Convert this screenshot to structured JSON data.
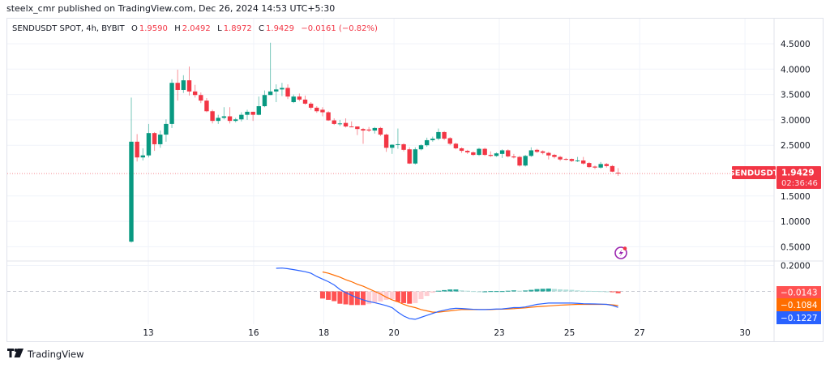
{
  "header": {
    "published": "steelx_cmr published on TradingView.com, Dec 26, 2024 14:53 UTC+5:30"
  },
  "legend": {
    "symbol": "SENDUSDT SPOT, 4h, BYBIT",
    "o_label": "O",
    "o": "1.9590",
    "h_label": "H",
    "h": "2.0492",
    "l_label": "L",
    "l": "1.8972",
    "c_label": "C",
    "c": "1.9429",
    "change": "−0.0161 (−0.82%)"
  },
  "price_label": {
    "symbol": "SENDUSDT",
    "price": "1.9429",
    "countdown": "02:36:46"
  },
  "macd_labels": {
    "histogram": "−0.0143",
    "signal": "−0.1084",
    "macd": "−0.1227"
  },
  "footer": {
    "brand": "TradingView"
  },
  "colors": {
    "up": "#089981",
    "down": "#f23645",
    "macd": "#2962ff",
    "signal": "#ff6d00",
    "hist_up": "#26a69a",
    "hist_up_light": "#b2dfdb",
    "hist_down": "#ff5252",
    "hist_down_light": "#ffcdd2",
    "alert_icon": "#9c27b0"
  },
  "icons": {
    "alert": "lightning-alert-icon",
    "logo": "tradingview-logo-icon"
  },
  "chart_data": [
    {
      "type": "candlestick",
      "interval": "4h",
      "y_ticks": [
        "4.5000",
        "4.0000",
        "3.5000",
        "3.0000",
        "2.5000",
        "1.5000",
        "1.0000",
        "0.5000"
      ],
      "x_ticks": [
        "13",
        "16",
        "18",
        "20",
        "23",
        "25",
        "27",
        "30"
      ],
      "grid": true,
      "ohlc": [
        [
          0.6,
          3.44,
          0.58,
          2.57
        ],
        [
          2.57,
          2.72,
          2.18,
          2.26
        ],
        [
          2.26,
          2.44,
          2.2,
          2.3
        ],
        [
          2.3,
          2.92,
          2.26,
          2.74
        ],
        [
          2.74,
          2.76,
          2.39,
          2.52
        ],
        [
          2.52,
          2.79,
          2.45,
          2.71
        ],
        [
          2.71,
          3.01,
          2.57,
          2.92
        ],
        [
          2.92,
          3.8,
          2.84,
          3.73
        ],
        [
          3.73,
          3.99,
          3.38,
          3.59
        ],
        [
          3.59,
          3.88,
          3.53,
          3.78
        ],
        [
          3.78,
          4.05,
          3.48,
          3.56
        ],
        [
          3.56,
          3.69,
          3.44,
          3.49
        ],
        [
          3.49,
          3.54,
          3.33,
          3.38
        ],
        [
          3.38,
          3.43,
          3.15,
          3.17
        ],
        [
          3.17,
          3.2,
          2.93,
          2.98
        ],
        [
          2.98,
          3.1,
          2.92,
          3.04
        ],
        [
          3.04,
          3.25,
          3.01,
          3.07
        ],
        [
          3.07,
          3.25,
          2.93,
          2.98
        ],
        [
          2.98,
          3.04,
          2.95,
          3.01
        ],
        [
          3.01,
          3.15,
          2.97,
          3.1
        ],
        [
          3.1,
          3.2,
          3.0,
          3.16
        ],
        [
          3.16,
          3.16,
          2.98,
          3.1
        ],
        [
          3.1,
          3.46,
          3.09,
          3.27
        ],
        [
          3.27,
          3.58,
          3.25,
          3.49
        ],
        [
          3.49,
          4.52,
          3.49,
          3.56
        ],
        [
          3.56,
          3.7,
          3.35,
          3.6
        ],
        [
          3.6,
          3.73,
          3.47,
          3.63
        ],
        [
          3.63,
          3.7,
          3.41,
          3.46
        ],
        [
          3.35,
          3.5,
          3.33,
          3.46
        ],
        [
          3.46,
          3.52,
          3.37,
          3.4
        ],
        [
          3.4,
          3.48,
          3.3,
          3.32
        ],
        [
          3.32,
          3.35,
          3.2,
          3.24
        ],
        [
          3.24,
          3.27,
          3.14,
          3.17
        ],
        [
          3.2,
          3.25,
          3.07,
          3.15
        ],
        [
          3.15,
          3.17,
          2.98,
          2.99
        ],
        [
          2.99,
          3.03,
          2.9,
          2.92
        ],
        [
          2.92,
          3.0,
          2.88,
          2.93
        ],
        [
          2.94,
          3.03,
          2.85,
          2.87
        ],
        [
          2.87,
          2.97,
          2.86,
          2.86
        ],
        [
          2.87,
          2.87,
          2.7,
          2.82
        ],
        [
          2.82,
          2.84,
          2.53,
          2.79
        ],
        [
          2.81,
          2.86,
          2.76,
          2.79
        ],
        [
          2.79,
          2.86,
          2.73,
          2.84
        ],
        [
          2.84,
          2.86,
          2.68,
          2.71
        ],
        [
          2.71,
          2.73,
          2.37,
          2.45
        ],
        [
          2.45,
          2.52,
          2.33,
          2.51
        ],
        [
          2.51,
          2.83,
          2.43,
          2.52
        ],
        [
          2.52,
          2.54,
          2.38,
          2.41
        ],
        [
          2.42,
          2.46,
          2.13,
          2.14
        ],
        [
          2.14,
          2.46,
          2.12,
          2.42
        ],
        [
          2.42,
          2.52,
          2.4,
          2.5
        ],
        [
          2.5,
          2.65,
          2.47,
          2.6
        ],
        [
          2.6,
          2.67,
          2.57,
          2.63
        ],
        [
          2.63,
          2.83,
          2.6,
          2.76
        ],
        [
          2.76,
          2.78,
          2.6,
          2.63
        ],
        [
          2.64,
          2.66,
          2.5,
          2.53
        ],
        [
          2.53,
          2.55,
          2.42,
          2.44
        ],
        [
          2.44,
          2.46,
          2.35,
          2.39
        ],
        [
          2.39,
          2.41,
          2.33,
          2.36
        ],
        [
          2.36,
          2.38,
          2.29,
          2.31
        ],
        [
          2.31,
          2.45,
          2.29,
          2.43
        ],
        [
          2.43,
          2.45,
          2.29,
          2.31
        ],
        [
          2.31,
          2.38,
          2.27,
          2.29
        ],
        [
          2.29,
          2.36,
          2.27,
          2.34
        ],
        [
          2.33,
          2.42,
          2.25,
          2.4
        ],
        [
          2.4,
          2.42,
          2.26,
          2.28
        ],
        [
          2.28,
          2.33,
          2.24,
          2.26
        ],
        [
          2.27,
          2.29,
          2.08,
          2.1
        ],
        [
          2.1,
          2.31,
          2.08,
          2.29
        ],
        [
          2.29,
          2.46,
          2.27,
          2.4
        ],
        [
          2.41,
          2.43,
          2.35,
          2.37
        ],
        [
          2.38,
          2.4,
          2.32,
          2.35
        ],
        [
          2.35,
          2.37,
          2.22,
          2.3
        ],
        [
          2.31,
          2.33,
          2.24,
          2.27
        ],
        [
          2.27,
          2.29,
          2.19,
          2.22
        ],
        [
          2.23,
          2.25,
          2.2,
          2.22
        ],
        [
          2.23,
          2.24,
          2.17,
          2.19
        ],
        [
          2.19,
          2.27,
          2.17,
          2.2
        ],
        [
          2.2,
          2.27,
          2.12,
          2.14
        ],
        [
          2.15,
          2.17,
          2.05,
          2.07
        ],
        [
          2.08,
          2.1,
          2.03,
          2.06
        ],
        [
          2.06,
          2.17,
          2.04,
          2.13
        ],
        [
          2.13,
          2.15,
          2.06,
          2.09
        ],
        [
          2.09,
          2.11,
          1.97,
          1.98
        ],
        [
          1.959,
          2.0492,
          1.8972,
          1.9429
        ]
      ],
      "last_price": 1.9429
    },
    {
      "type": "line",
      "indicator": "MACD",
      "y_ticks": [
        "0.2000"
      ],
      "macd_start_index": 25,
      "macd": [
        0.178,
        0.18,
        0.175,
        0.168,
        0.16,
        0.152,
        0.14,
        0.115,
        0.095,
        0.075,
        0.05,
        0.015,
        -0.01,
        -0.03,
        -0.05,
        -0.065,
        -0.078,
        -0.087,
        -0.098,
        -0.11,
        -0.125,
        -0.16,
        -0.19,
        -0.21,
        -0.215,
        -0.2,
        -0.185,
        -0.17,
        -0.155,
        -0.145,
        -0.135,
        -0.13,
        -0.132,
        -0.135,
        -0.138,
        -0.14,
        -0.14,
        -0.138,
        -0.136,
        -0.135,
        -0.13,
        -0.125,
        -0.125,
        -0.12,
        -0.11,
        -0.1,
        -0.095,
        -0.09,
        -0.09,
        -0.09,
        -0.09,
        -0.09,
        -0.092,
        -0.095,
        -0.096,
        -0.097,
        -0.098,
        -0.1,
        -0.108,
        -0.1227
      ],
      "signal_start_index": 33,
      "signal": [
        0.15,
        0.14,
        0.125,
        0.11,
        0.09,
        0.075,
        0.055,
        0.04,
        0.02,
        0.0,
        -0.02,
        -0.045,
        -0.065,
        -0.08,
        -0.1,
        -0.115,
        -0.125,
        -0.14,
        -0.15,
        -0.16,
        -0.16,
        -0.155,
        -0.15,
        -0.145,
        -0.14,
        -0.14,
        -0.14,
        -0.14,
        -0.14,
        -0.14,
        -0.138,
        -0.137,
        -0.135,
        -0.133,
        -0.13,
        -0.127,
        -0.122,
        -0.118,
        -0.115,
        -0.112,
        -0.109,
        -0.106,
        -0.104,
        -0.102,
        -0.1,
        -0.1,
        -0.1,
        -0.1,
        -0.1,
        -0.1,
        -0.104,
        -0.1084
      ]
    }
  ]
}
